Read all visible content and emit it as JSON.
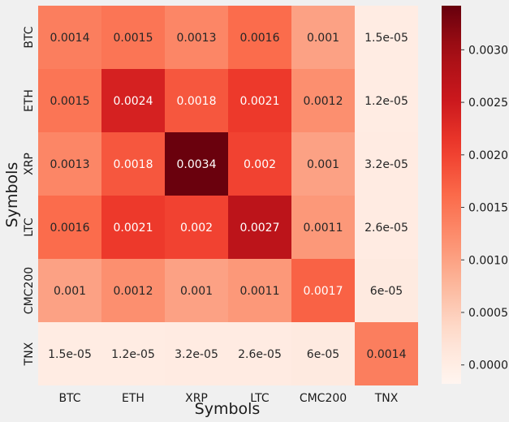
{
  "chart_data": {
    "type": "heatmap",
    "xlabel": "Symbols",
    "ylabel": "Symbols",
    "x_categories": [
      "BTC",
      "ETH",
      "XRP",
      "LTC",
      "CMC200",
      "TNX"
    ],
    "y_categories": [
      "BTC",
      "ETH",
      "XRP",
      "LTC",
      "CMC200",
      "TNX"
    ],
    "values": [
      [
        0.0014,
        0.0015,
        0.0013,
        0.0016,
        0.001,
        1.5e-05
      ],
      [
        0.0015,
        0.0024,
        0.0018,
        0.0021,
        0.0012,
        1.2e-05
      ],
      [
        0.0013,
        0.0018,
        0.0034,
        0.002,
        0.001,
        3.2e-05
      ],
      [
        0.0016,
        0.0021,
        0.002,
        0.0027,
        0.0011,
        2.6e-05
      ],
      [
        0.001,
        0.0012,
        0.001,
        0.0011,
        0.0017,
        6e-05
      ],
      [
        1.5e-05,
        1.2e-05,
        3.2e-05,
        2.6e-05,
        6e-05,
        0.0014
      ]
    ],
    "cell_labels": [
      [
        "0.0014",
        "0.0015",
        "0.0013",
        "0.0016",
        "0.001",
        "1.5e-05"
      ],
      [
        "0.0015",
        "0.0024",
        "0.0018",
        "0.0021",
        "0.0012",
        "1.2e-05"
      ],
      [
        "0.0013",
        "0.0018",
        "0.0034",
        "0.002",
        "0.001",
        "3.2e-05"
      ],
      [
        "0.0016",
        "0.0021",
        "0.002",
        "0.0027",
        "0.0011",
        "2.6e-05"
      ],
      [
        "0.001",
        "0.0012",
        "0.001",
        "0.0011",
        "0.0017",
        "6e-05"
      ],
      [
        "1.5e-05",
        "1.2e-05",
        "3.2e-05",
        "2.6e-05",
        "6e-05",
        "0.0014"
      ]
    ],
    "colormap": "Reds",
    "colorbar": {
      "vmin": -0.00018,
      "vmax": 0.00342,
      "ticks": [
        0.0,
        0.0005,
        0.001,
        0.0015,
        0.002,
        0.0025,
        0.003
      ],
      "tick_labels": [
        "0.0000",
        "0.0005",
        "0.0010",
        "0.0015",
        "0.0020",
        "0.0025",
        "0.0030"
      ]
    },
    "grid": false
  }
}
